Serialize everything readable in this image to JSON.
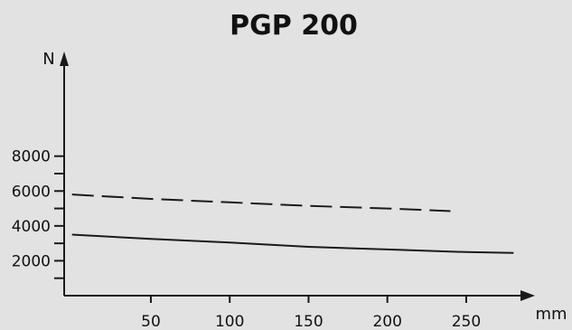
{
  "chart_data": {
    "type": "line",
    "title": "PGP 200",
    "xlabel": "mm",
    "ylabel": "N",
    "xlim": [
      -5,
      285
    ],
    "ylim": [
      0,
      14000
    ],
    "x_ticks": [
      50,
      100,
      150,
      200,
      250
    ],
    "x_tick_labels": [
      "50",
      "100",
      "150",
      "200",
      "250"
    ],
    "y_major_ticks": [
      2000,
      4000,
      6000,
      8000
    ],
    "y_tick_labels": [
      "2000",
      "4000",
      "6000",
      "8000"
    ],
    "y_minor_ticks": [
      1000,
      3000,
      5000,
      7000
    ],
    "grid": false,
    "legend": "none",
    "series": [
      {
        "style": "dashed",
        "x": [
          0,
          50,
          100,
          150,
          200,
          240
        ],
        "y": [
          5800,
          5550,
          5350,
          5150,
          5000,
          4850
        ]
      },
      {
        "style": "solid",
        "x": [
          0,
          50,
          100,
          150,
          200,
          250,
          280
        ],
        "y": [
          3500,
          3250,
          3050,
          2800,
          2650,
          2500,
          2450
        ]
      }
    ],
    "colors": {
      "line": "#1a1a1a",
      "background": "#e2e2e2"
    }
  }
}
